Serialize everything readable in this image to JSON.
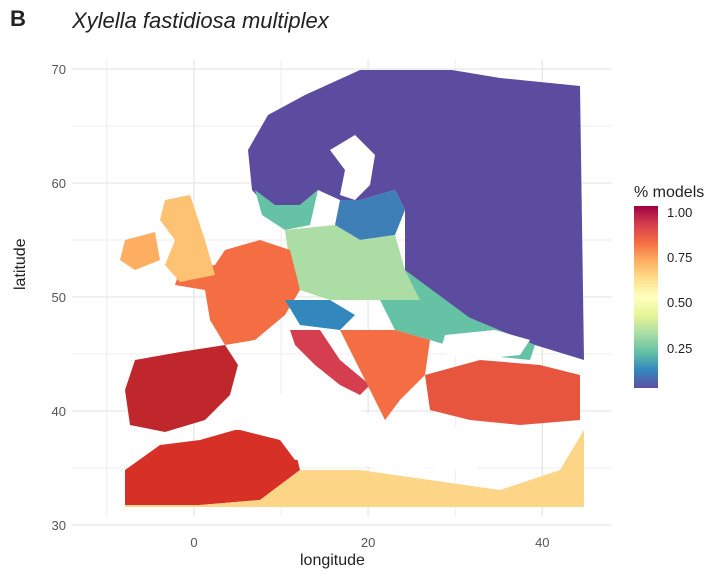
{
  "panel_label": "B",
  "title": "Xylella fastidiosa multiplex",
  "x_axis": {
    "title": "longitude",
    "ticks": [
      0,
      20,
      40
    ],
    "range": [
      -14,
      48
    ]
  },
  "y_axis": {
    "title": "latitude",
    "ticks": [
      30,
      40,
      50,
      60,
      70
    ],
    "range": [
      30,
      70
    ]
  },
  "legend": {
    "title": "% models",
    "labels": [
      "1.00",
      "0.75",
      "0.50",
      "0.25"
    ],
    "colors": [
      "#9e0142",
      "#d53e4f",
      "#f46d43",
      "#fdae61",
      "#fee08b",
      "#ffffbf",
      "#e6f598",
      "#abdda4",
      "#66c2a5",
      "#3288bd",
      "#5e4fa2"
    ]
  },
  "colors": {
    "background": "#ffffff",
    "grid": "#e6e6e6",
    "sea": "#ffffff",
    "border": "#777777"
  }
}
